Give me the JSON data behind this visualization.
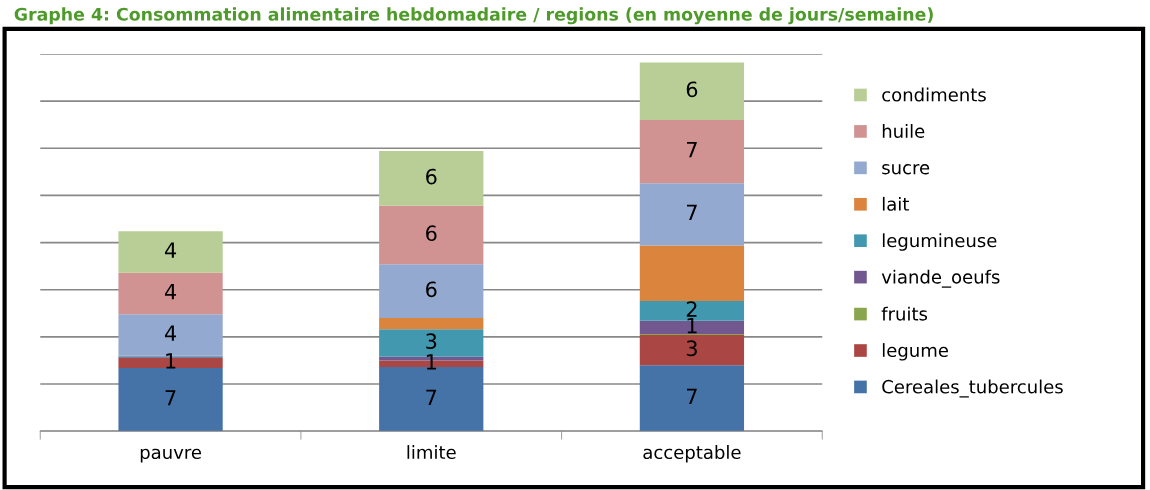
{
  "chart_data": {
    "type": "bar",
    "stacked": true,
    "title": "Graphe 4: Consommation alimentaire hebdomadaire / regions (en moyenne de jours/semaine)",
    "categories": [
      "pauvre",
      "limite",
      "acceptable"
    ],
    "series": [
      {
        "name": "Cereales_tubercules",
        "color": "#4572a7",
        "values": [
          6.7,
          6.8,
          7.0
        ],
        "value_labels": [
          "7",
          "7",
          "7"
        ]
      },
      {
        "name": "legume",
        "color": "#aa4643",
        "values": [
          1.1,
          0.7,
          3.2
        ],
        "value_labels": [
          "1",
          "1",
          "3"
        ]
      },
      {
        "name": "fruits",
        "color": "#89a54e",
        "values": [
          0,
          0,
          0.1
        ],
        "value_labels": [
          null,
          null,
          null
        ]
      },
      {
        "name": "viande_oeufs",
        "color": "#71588f",
        "values": [
          0.1,
          0.4,
          1.4
        ],
        "value_labels": [
          null,
          null,
          "1"
        ]
      },
      {
        "name": "legumineuse",
        "color": "#4198af",
        "values": [
          0.1,
          2.9,
          2.1
        ],
        "value_labels": [
          null,
          "3",
          "2"
        ]
      },
      {
        "name": "lait",
        "color": "#db843d",
        "values": [
          0,
          1.2,
          5.9
        ],
        "value_labels": [
          null,
          null,
          null
        ]
      },
      {
        "name": "sucre",
        "color": "#93a9cf",
        "values": [
          4.4,
          5.7,
          6.6
        ],
        "value_labels": [
          "4",
          "6",
          "7"
        ]
      },
      {
        "name": "huile",
        "color": "#d19392",
        "values": [
          4.4,
          6.2,
          6.7
        ],
        "value_labels": [
          "4",
          "6",
          "7"
        ]
      },
      {
        "name": "condiments",
        "color": "#b9cd96",
        "values": [
          4.4,
          5.8,
          6.1
        ],
        "value_labels": [
          "4",
          "6",
          "6"
        ]
      }
    ],
    "ylim": [
      0,
      40
    ],
    "yticks": [
      0,
      5,
      10,
      15,
      20,
      25,
      30,
      35,
      40
    ],
    "tick_labels": "x",
    "grid": "y",
    "legend": "right"
  }
}
